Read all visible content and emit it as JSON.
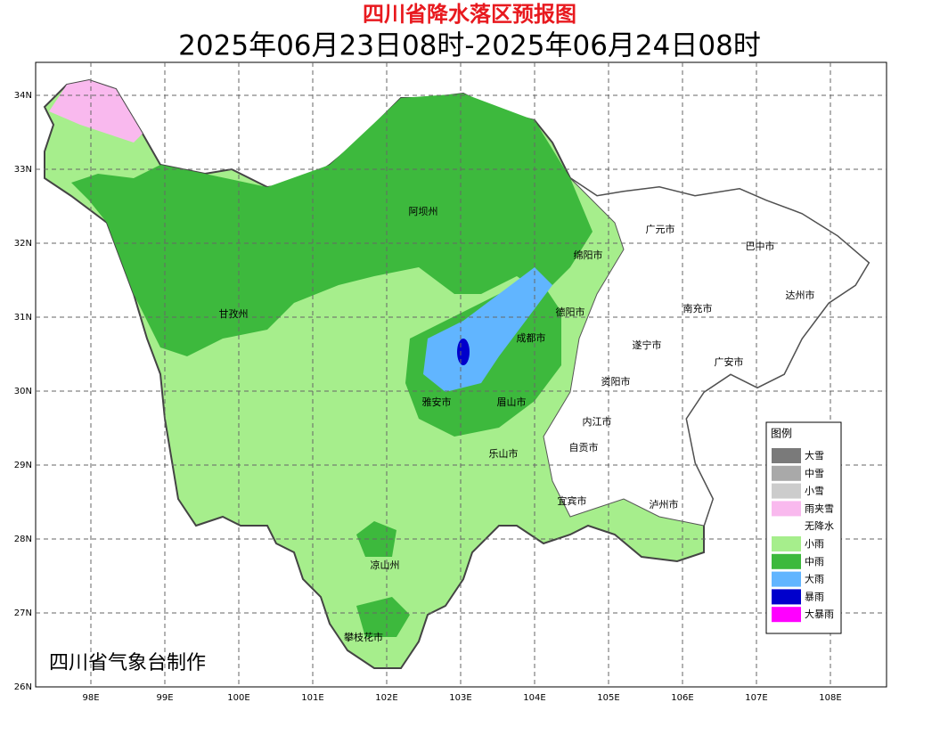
{
  "header": {
    "title": "四川省降水落区预报图",
    "subtitle": "2025年06月23日08时-2025年06月24日08时"
  },
  "axes": {
    "latitude_labels": [
      "34N",
      "33N",
      "32N",
      "31N",
      "30N",
      "29N",
      "28N",
      "27N",
      "26N"
    ],
    "longitude_labels": [
      "98E",
      "99E",
      "100E",
      "101E",
      "102E",
      "103E",
      "104E",
      "105E",
      "106E",
      "107E",
      "108E"
    ]
  },
  "regions": [
    "阿坝州",
    "甘孜州",
    "广元市",
    "巴中市",
    "绵阳市",
    "达州市",
    "德阳市",
    "南充市",
    "成都市",
    "遂宁市",
    "广安市",
    "资阳市",
    "雅安市",
    "眉山市",
    "内江市",
    "自贡市",
    "乐山市",
    "宜宾市",
    "泸州市",
    "凉山州",
    "攀枝花市"
  ],
  "legend": {
    "title": "图例",
    "items": [
      "大雪",
      "中雪",
      "小雪",
      "雨夹雪",
      "无降水",
      "小雨",
      "中雨",
      "大雨",
      "暴雨",
      "大暴雨"
    ]
  },
  "footer": "四川省气象台制作"
}
